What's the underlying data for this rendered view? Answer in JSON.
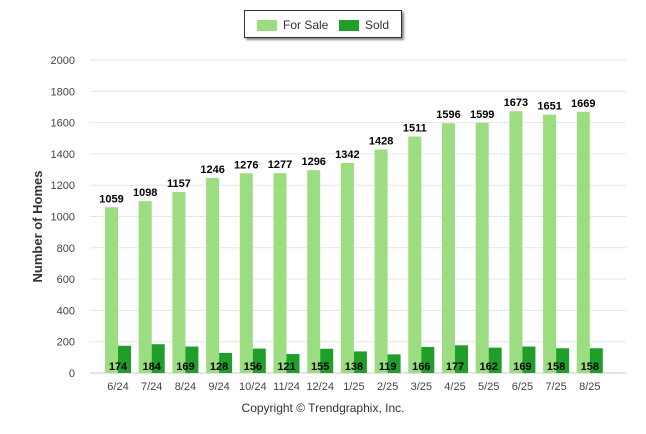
{
  "chart_data": {
    "type": "bar",
    "ylabel": "Number of Homes",
    "xlabel": "",
    "ylim": [
      0,
      2000
    ],
    "yticks": [
      0,
      200,
      400,
      600,
      800,
      1000,
      1200,
      1400,
      1600,
      1800,
      2000
    ],
    "grid": true,
    "legend_position": "top-center",
    "categories": [
      "6/24",
      "7/24",
      "8/24",
      "9/24",
      "10/24",
      "11/24",
      "12/24",
      "1/25",
      "2/25",
      "3/25",
      "4/25",
      "5/25",
      "6/25",
      "7/25",
      "8/25"
    ],
    "series": [
      {
        "name": "For Sale",
        "color": "#9ddd82",
        "values": [
          1059,
          1098,
          1157,
          1246,
          1276,
          1277,
          1296,
          1342,
          1428,
          1511,
          1596,
          1599,
          1673,
          1651,
          1669
        ]
      },
      {
        "name": "Sold",
        "color": "#1f9e2a",
        "values": [
          174,
          184,
          169,
          128,
          156,
          121,
          155,
          138,
          119,
          166,
          177,
          162,
          169,
          158,
          158
        ]
      }
    ]
  },
  "copyright": "Copyright © Trendgraphix, Inc."
}
